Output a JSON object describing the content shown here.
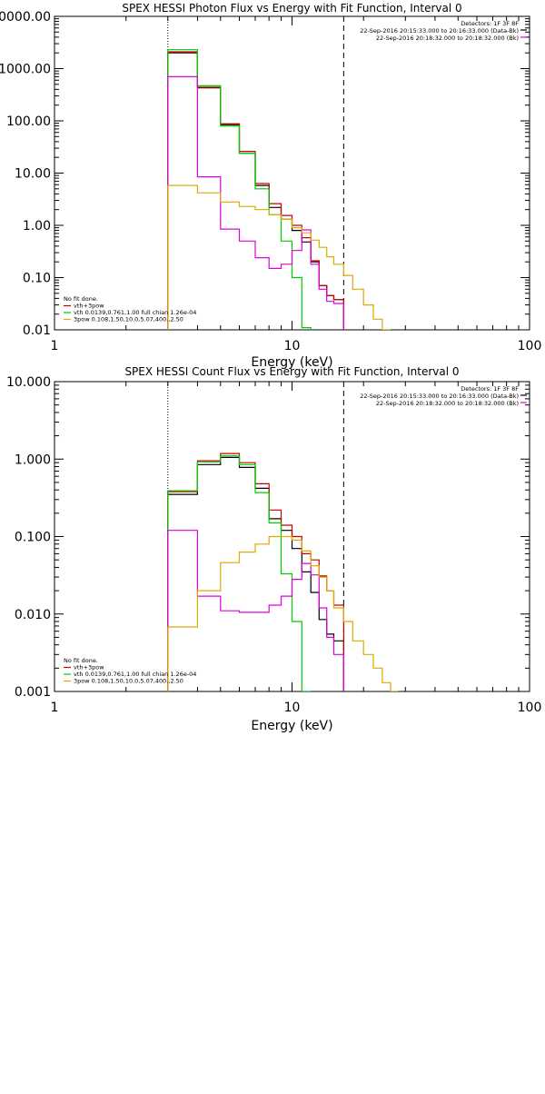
{
  "chart_data": [
    {
      "type": "line",
      "title": "SPEX HESSI Photon Flux vs Energy with Fit Function, Interval 0",
      "xlabel": "Energy (keV)",
      "ylabel": "",
      "xscale": "log",
      "yscale": "log",
      "xlim": [
        1,
        100
      ],
      "ylim": [
        0.01,
        10000
      ],
      "x_tick_labels": [
        "1",
        "10",
        "100"
      ],
      "y_tick_labels": [
        "0.01",
        "0.10",
        "1.00",
        "10.00",
        "100.00",
        "1000.00",
        "10000.00"
      ],
      "grid": false,
      "legend_position": "bottom-left",
      "header_lines": [
        "Detectors: 1F 3F 8F",
        "22-Sep-2016 20:15:33.000 to 20:16:33.000 (Data-Bk)",
        "22-Sep-2016 20:18:32.000 to 20:18:32.000 (Bk)"
      ],
      "legend_lines": [
        "No fit done.",
        "vth+3pow",
        "vth 0.0139,0.761,1.00  full chian 1.26e-04",
        "3pow 0.108,1.50,10.0,5.07,400.,2.50"
      ],
      "legend_colors": [
        "#000000",
        "#cc0000",
        "#00cc00",
        "#ddaa00"
      ],
      "vlines": [
        {
          "x": 3.0,
          "style": "dotted"
        },
        {
          "x": 16.5,
          "style": "dashed"
        }
      ],
      "edges": [
        3.0,
        4.0,
        5.0,
        6.0,
        7.0,
        8.0,
        9.0,
        10.0,
        11.0,
        12.0,
        13.0,
        14.0,
        15.0,
        16.5,
        18.0,
        20.0,
        22.0,
        24.0,
        26.0
      ],
      "series": [
        {
          "color": "#000000",
          "values": [
            2000,
            430,
            85,
            24,
            5.8,
            2.2,
            1.3,
            0.8,
            0.48,
            0.2,
            0.07,
            0.045,
            0.038,
            null,
            null,
            null,
            null,
            null
          ]
        },
        {
          "color": "#cc0000",
          "values": [
            2100,
            440,
            88,
            26,
            6.3,
            2.6,
            1.55,
            1.0,
            0.58,
            0.21,
            0.07,
            0.045,
            0.038,
            null,
            null,
            null,
            null,
            null
          ]
        },
        {
          "color": "#00cc00",
          "values": [
            2300,
            470,
            80,
            24,
            5.0,
            1.6,
            0.5,
            0.1,
            0.011,
            null,
            null,
            null,
            null,
            null,
            null,
            null,
            null,
            null
          ]
        },
        {
          "color": "#dd00dd",
          "values": [
            700,
            8.5,
            0.85,
            0.5,
            0.24,
            0.15,
            0.18,
            0.33,
            0.82,
            0.18,
            0.06,
            0.035,
            0.032,
            null,
            null,
            null,
            null,
            null
          ]
        },
        {
          "color": "#ddaa00",
          "values": [
            5.8,
            4.2,
            2.8,
            2.3,
            2.0,
            1.6,
            1.3,
            0.9,
            0.72,
            0.52,
            0.38,
            0.25,
            0.18,
            0.11,
            0.06,
            0.03,
            0.016,
            0.01
          ]
        }
      ]
    },
    {
      "type": "line",
      "title": "SPEX HESSI Count Flux vs Energy with Fit Function, Interval 0",
      "xlabel": "Energy (keV)",
      "ylabel": "",
      "xscale": "log",
      "yscale": "log",
      "xlim": [
        1,
        100
      ],
      "ylim": [
        0.001,
        10
      ],
      "x_tick_labels": [
        "1",
        "10",
        "100"
      ],
      "y_tick_labels": [
        "0.001",
        "0.010",
        "0.100",
        "1.000",
        "10.000"
      ],
      "grid": false,
      "legend_position": "bottom-left",
      "header_lines": [
        "Detectors: 1F 3F 8F",
        "22-Sep-2016 20:15:33.000 to 20:16:33.000 (Data-Bk)",
        "22-Sep-2016 20:18:32.000 to 20:18:32.000 (Bk)"
      ],
      "legend_lines": [
        "No fit done.",
        "vth+3pow",
        "vth 0.0139,0.761,1.00  full chian 1.26e-04",
        "3pow 0.108,1.50,10.0,5.07,400.,2.50"
      ],
      "legend_colors": [
        "#000000",
        "#cc0000",
        "#00cc00",
        "#ddaa00"
      ],
      "vlines": [
        {
          "x": 3.0,
          "style": "dotted"
        },
        {
          "x": 16.5,
          "style": "dashed"
        }
      ],
      "edges": [
        3.0,
        4.0,
        5.0,
        6.0,
        7.0,
        8.0,
        9.0,
        10.0,
        11.0,
        12.0,
        13.0,
        14.0,
        15.0,
        16.5,
        18.0,
        20.0,
        22.0,
        24.0,
        26.0,
        28.0
      ],
      "series": [
        {
          "color": "#000000",
          "values": [
            0.35,
            0.85,
            1.05,
            0.78,
            0.42,
            0.17,
            0.12,
            0.07,
            0.035,
            0.019,
            0.0085,
            0.0055,
            0.0045,
            null,
            null,
            null,
            null,
            null,
            null
          ]
        },
        {
          "color": "#cc0000",
          "values": [
            0.38,
            0.95,
            1.18,
            0.9,
            0.48,
            0.22,
            0.14,
            0.1,
            0.06,
            0.05,
            0.031,
            0.02,
            0.013,
            null,
            null,
            null,
            null,
            null,
            null
          ]
        },
        {
          "color": "#00cc00",
          "values": [
            0.39,
            0.92,
            1.1,
            0.85,
            0.37,
            0.15,
            0.033,
            0.008,
            0.001,
            null,
            null,
            null,
            null,
            null,
            null,
            null,
            null,
            null,
            null
          ]
        },
        {
          "color": "#dd00dd",
          "values": [
            0.12,
            0.017,
            0.011,
            0.0105,
            0.0105,
            0.013,
            0.017,
            0.028,
            0.045,
            0.032,
            0.012,
            0.005,
            0.003,
            null,
            null,
            null,
            null,
            null,
            null
          ]
        },
        {
          "color": "#ddaa00",
          "values": [
            0.0068,
            0.02,
            0.046,
            0.063,
            0.08,
            0.1,
            0.1,
            0.09,
            0.065,
            0.042,
            0.03,
            0.02,
            0.012,
            0.008,
            0.0045,
            0.003,
            0.002,
            0.0013,
            0.001
          ]
        }
      ]
    }
  ]
}
